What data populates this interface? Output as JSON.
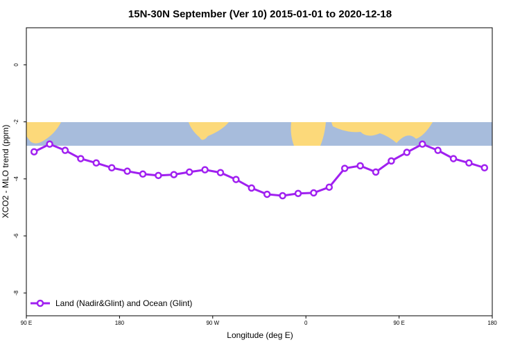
{
  "chart_data": {
    "type": "line",
    "title": "15N-30N September (Ver 10)   2015-01-01 to 2020-12-18",
    "x_label": "Longitude (deg E)",
    "y_label": "XCO2 - MLO trend (ppm)",
    "x": [
      97.5,
      112.5,
      127.5,
      142.5,
      157.5,
      172.5,
      187.5,
      202.5,
      217.5,
      232.5,
      247.5,
      262.5,
      277.5,
      292.5,
      307.5,
      322.5,
      337.5,
      352.5,
      367.5,
      382.5,
      397.5,
      412.5,
      427.5,
      442.5,
      457.5,
      472.5,
      487.5,
      502.5,
      517.5,
      532.5
    ],
    "series": [
      {
        "name": "Land (Nadir&Glint) and Ocean (Glint)",
        "color": "#a020f0",
        "values": [
          -3.05,
          -2.78,
          -3.0,
          -3.29,
          -3.44,
          -3.61,
          -3.73,
          -3.83,
          -3.88,
          -3.85,
          -3.76,
          -3.68,
          -3.78,
          -4.02,
          -4.32,
          -4.54,
          -4.59,
          -4.51,
          -4.49,
          -4.29,
          -3.63,
          -3.54,
          -3.76,
          -3.37,
          -3.07,
          -2.78,
          -3.0,
          -3.29,
          -3.44,
          -3.61
        ]
      }
    ],
    "xlim": [
      90,
      540
    ],
    "xticks": [
      {
        "value": 90,
        "label": "90 E"
      },
      180,
      {
        "value": 270,
        "label": "90 W"
      },
      {
        "value": 360,
        "label": "0"
      },
      {
        "value": 450,
        "label": "90 E"
      },
      {
        "value": 540,
        "label": "180"
      }
    ],
    "ylim": [
      -8.8,
      1.3
    ],
    "yticks": [
      -8,
      -6,
      -4,
      -2,
      0
    ],
    "legend": "bottom-left"
  }
}
